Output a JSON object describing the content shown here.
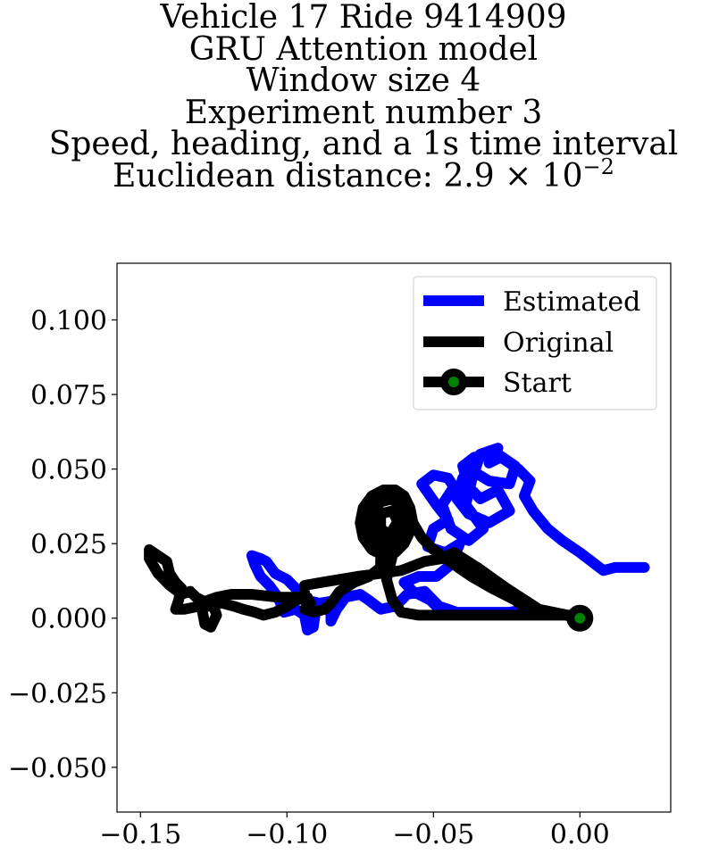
{
  "chart_data": {
    "type": "line",
    "title_lines": [
      "Vehicle 17 Ride 9414909",
      "GRU Attention model",
      "Window size 4",
      "Experiment number 3",
      "Speed, heading, and a 1s time interval"
    ],
    "title_distance_prefix": "Euclidean distance: 2.9 × 10",
    "title_distance_exponent": "−2",
    "xlim": [
      -0.158,
      0.031
    ],
    "ylim": [
      -0.065,
      0.119
    ],
    "xticks": [
      -0.15,
      -0.1,
      -0.05,
      0.0
    ],
    "xtick_labels": [
      "−0.15",
      "−0.10",
      "−0.05",
      "0.00"
    ],
    "yticks": [
      0.1,
      0.075,
      0.05,
      0.025,
      0.0,
      -0.025,
      -0.05
    ],
    "ytick_labels": [
      "0.100",
      "0.075",
      "0.050",
      "0.025",
      "0.000",
      "−0.025",
      "−0.050"
    ],
    "grid": false,
    "legend_position": "upper right",
    "series": [
      {
        "name": "Estimated",
        "color": "#0000ff",
        "points": [
          [
            0.022,
            0.017
          ],
          [
            0.012,
            0.017
          ],
          [
            0.008,
            0.016
          ],
          [
            0.004,
            0.019
          ],
          [
            0.0,
            0.022
          ],
          [
            -0.006,
            0.026
          ],
          [
            -0.011,
            0.03
          ],
          [
            -0.016,
            0.036
          ],
          [
            -0.019,
            0.041
          ],
          [
            -0.017,
            0.046
          ],
          [
            -0.021,
            0.05
          ],
          [
            -0.027,
            0.054
          ],
          [
            -0.031,
            0.052
          ],
          [
            -0.028,
            0.057
          ],
          [
            -0.034,
            0.055
          ],
          [
            -0.036,
            0.049
          ],
          [
            -0.031,
            0.046
          ],
          [
            -0.024,
            0.045
          ],
          [
            -0.022,
            0.051
          ],
          [
            -0.028,
            0.055
          ],
          [
            -0.036,
            0.054
          ],
          [
            -0.04,
            0.051
          ],
          [
            -0.038,
            0.044
          ],
          [
            -0.034,
            0.04
          ],
          [
            -0.028,
            0.043
          ],
          [
            -0.024,
            0.036
          ],
          [
            -0.031,
            0.032
          ],
          [
            -0.038,
            0.035
          ],
          [
            -0.042,
            0.04
          ],
          [
            -0.04,
            0.047
          ],
          [
            -0.036,
            0.05
          ],
          [
            -0.039,
            0.038
          ],
          [
            -0.033,
            0.03
          ],
          [
            -0.038,
            0.026
          ],
          [
            -0.044,
            0.03
          ],
          [
            -0.047,
            0.038
          ],
          [
            -0.043,
            0.044
          ],
          [
            -0.045,
            0.047
          ],
          [
            -0.05,
            0.048
          ],
          [
            -0.054,
            0.045
          ],
          [
            -0.049,
            0.038
          ],
          [
            -0.045,
            0.033
          ],
          [
            -0.05,
            0.03
          ],
          [
            -0.052,
            0.024
          ],
          [
            -0.046,
            0.022
          ],
          [
            -0.041,
            0.025
          ],
          [
            -0.044,
            0.018
          ],
          [
            -0.049,
            0.014
          ],
          [
            -0.055,
            0.014
          ],
          [
            -0.06,
            0.012
          ],
          [
            -0.057,
            0.009
          ],
          [
            -0.051,
            0.006
          ],
          [
            -0.048,
            0.003
          ],
          [
            -0.043,
            0.002
          ],
          [
            -0.036,
            0.002
          ],
          [
            -0.03,
            0.002
          ],
          [
            -0.024,
            0.002
          ],
          [
            -0.02,
            0.002
          ],
          [
            -0.016,
            0.002
          ],
          [
            -0.014,
            0.003
          ],
          [
            -0.018,
            0.003
          ],
          [
            -0.024,
            0.002
          ],
          [
            -0.032,
            0.002
          ],
          [
            -0.042,
            0.002
          ],
          [
            -0.048,
            0.004
          ],
          [
            -0.053,
            0.009
          ],
          [
            -0.059,
            0.008
          ],
          [
            -0.063,
            0.004
          ],
          [
            -0.068,
            0.003
          ],
          [
            -0.072,
            0.006
          ],
          [
            -0.075,
            0.008
          ],
          [
            -0.08,
            0.007
          ],
          [
            -0.083,
            0.003
          ],
          [
            -0.085,
            -0.001
          ],
          [
            -0.085,
            0.005
          ],
          [
            -0.09,
            0.004
          ],
          [
            -0.091,
            -0.003
          ],
          [
            -0.093,
            -0.004
          ],
          [
            -0.094,
            0.001
          ],
          [
            -0.097,
            0.003
          ],
          [
            -0.101,
            0.002
          ],
          [
            -0.103,
            0.007
          ],
          [
            -0.106,
            0.011
          ],
          [
            -0.109,
            0.014
          ],
          [
            -0.111,
            0.018
          ],
          [
            -0.112,
            0.021
          ],
          [
            -0.109,
            0.02
          ],
          [
            -0.107,
            0.019
          ],
          [
            -0.104,
            0.015
          ],
          [
            -0.1,
            0.013
          ],
          [
            -0.097,
            0.01
          ],
          [
            -0.093,
            0.006
          ],
          [
            -0.089,
            0.005
          ],
          [
            -0.083,
            0.006
          ]
        ]
      },
      {
        "name": "Original",
        "color": "#000000",
        "points": [
          [
            0.0,
            0.0
          ],
          [
            -0.005,
            0.001
          ],
          [
            -0.012,
            0.002
          ],
          [
            -0.015,
            0.002
          ],
          [
            -0.018,
            0.003
          ],
          [
            -0.022,
            0.006
          ],
          [
            -0.03,
            0.01
          ],
          [
            -0.037,
            0.014
          ],
          [
            -0.043,
            0.018
          ],
          [
            -0.05,
            0.023
          ],
          [
            -0.054,
            0.027
          ],
          [
            -0.057,
            0.032
          ],
          [
            -0.058,
            0.037
          ],
          [
            -0.06,
            0.041
          ],
          [
            -0.063,
            0.043
          ],
          [
            -0.067,
            0.043
          ],
          [
            -0.071,
            0.041
          ],
          [
            -0.074,
            0.037
          ],
          [
            -0.075,
            0.032
          ],
          [
            -0.074,
            0.027
          ],
          [
            -0.071,
            0.023
          ],
          [
            -0.067,
            0.021
          ],
          [
            -0.063,
            0.022
          ],
          [
            -0.06,
            0.025
          ],
          [
            -0.058,
            0.029
          ],
          [
            -0.058,
            0.034
          ],
          [
            -0.06,
            0.039
          ],
          [
            -0.063,
            0.042
          ],
          [
            -0.067,
            0.042
          ],
          [
            -0.07,
            0.04
          ],
          [
            -0.072,
            0.036
          ],
          [
            -0.072,
            0.031
          ],
          [
            -0.071,
            0.027
          ],
          [
            -0.067,
            0.024
          ],
          [
            -0.063,
            0.024
          ],
          [
            -0.06,
            0.027
          ],
          [
            -0.06,
            0.032
          ],
          [
            -0.061,
            0.037
          ],
          [
            -0.064,
            0.04
          ],
          [
            -0.068,
            0.039
          ],
          [
            -0.071,
            0.035
          ],
          [
            -0.07,
            0.029
          ],
          [
            -0.067,
            0.026
          ],
          [
            -0.063,
            0.027
          ],
          [
            -0.062,
            0.032
          ],
          [
            -0.064,
            0.036
          ],
          [
            -0.068,
            0.035
          ],
          [
            -0.068,
            0.03
          ],
          [
            -0.065,
            0.028
          ],
          [
            -0.063,
            0.031
          ],
          [
            -0.064,
            0.021
          ],
          [
            -0.066,
            0.013
          ],
          [
            -0.064,
            0.006
          ],
          [
            -0.061,
            0.002
          ],
          [
            -0.055,
            0.001
          ],
          [
            -0.045,
            0.001
          ],
          [
            -0.035,
            0.001
          ],
          [
            -0.025,
            0.001
          ],
          [
            -0.015,
            0.001
          ],
          [
            -0.008,
            0.001
          ],
          [
            -0.004,
            0.001
          ],
          [
            -0.014,
            0.003
          ],
          [
            -0.025,
            0.01
          ],
          [
            -0.035,
            0.017
          ],
          [
            -0.043,
            0.022
          ],
          [
            -0.047,
            0.02
          ],
          [
            -0.053,
            0.019
          ],
          [
            -0.061,
            0.016
          ],
          [
            -0.068,
            0.015
          ],
          [
            -0.076,
            0.014
          ],
          [
            -0.082,
            0.013
          ],
          [
            -0.088,
            0.012
          ],
          [
            -0.094,
            0.011
          ],
          [
            -0.094,
            0.007
          ],
          [
            -0.097,
            0.007
          ],
          [
            -0.103,
            0.007
          ],
          [
            -0.112,
            0.008
          ],
          [
            -0.119,
            0.008
          ],
          [
            -0.124,
            0.007
          ],
          [
            -0.127,
            0.006
          ],
          [
            -0.129,
            0.003
          ],
          [
            -0.128,
            -0.002
          ],
          [
            -0.126,
            -0.003
          ],
          [
            -0.124,
            0.001
          ],
          [
            -0.125,
            0.004
          ],
          [
            -0.13,
            0.004
          ],
          [
            -0.135,
            0.003
          ],
          [
            -0.138,
            0.003
          ],
          [
            -0.137,
            0.006
          ],
          [
            -0.136,
            0.01
          ],
          [
            -0.138,
            0.012
          ],
          [
            -0.14,
            0.015
          ],
          [
            -0.141,
            0.019
          ],
          [
            -0.144,
            0.021
          ],
          [
            -0.147,
            0.023
          ],
          [
            -0.147,
            0.02
          ],
          [
            -0.144,
            0.015
          ],
          [
            -0.14,
            0.011
          ],
          [
            -0.136,
            0.008
          ],
          [
            -0.133,
            0.009
          ],
          [
            -0.131,
            0.007
          ],
          [
            -0.127,
            0.005
          ],
          [
            -0.122,
            0.005
          ],
          [
            -0.118,
            0.004
          ],
          [
            -0.115,
            0.003
          ],
          [
            -0.111,
            0.002
          ],
          [
            -0.108,
            0.001
          ],
          [
            -0.104,
            0.002
          ],
          [
            -0.1,
            0.004
          ],
          [
            -0.097,
            0.006
          ],
          [
            -0.093,
            0.007
          ],
          [
            -0.092,
            0.005
          ],
          [
            -0.094,
            0.003
          ],
          [
            -0.091,
            0.002
          ],
          [
            -0.087,
            0.003
          ],
          [
            -0.085,
            0.005
          ],
          [
            -0.082,
            0.009
          ],
          [
            -0.077,
            0.012
          ],
          [
            -0.072,
            0.014
          ],
          [
            -0.068,
            0.017
          ],
          [
            -0.068,
            0.02
          ]
        ]
      },
      {
        "name": "Start",
        "color": "#000000",
        "marker_face": "#008000",
        "points": [
          [
            0.0,
            0.0
          ]
        ]
      }
    ]
  }
}
